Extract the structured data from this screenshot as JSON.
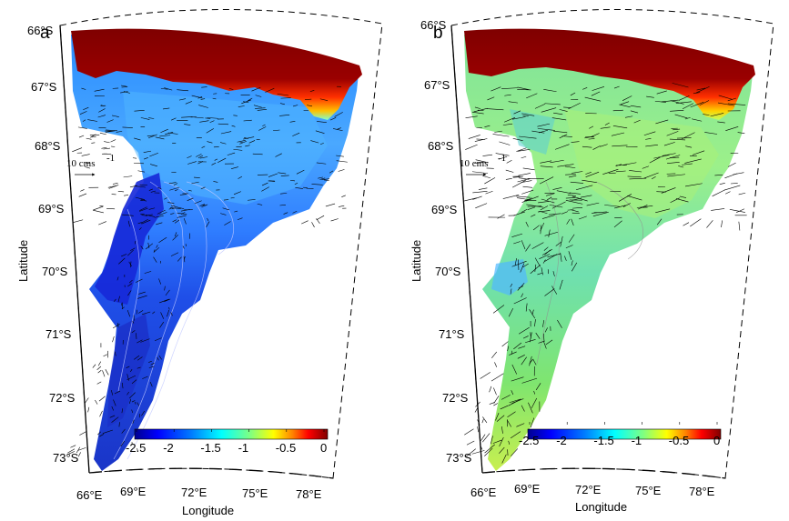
{
  "figure": {
    "x_axis_title": "Longitude",
    "y_axis_title": "Latitude",
    "colorbar_ticks": [
      "-2.5",
      "-2",
      "-1.5",
      "-1",
      "-0.5",
      "0"
    ],
    "lat_ticks": [
      "66°S",
      "67°S",
      "68°S",
      "69°S",
      "70°S",
      "71°S",
      "72°S",
      "73°S"
    ],
    "lon_ticks": [
      "66°E",
      "69°E",
      "72°E",
      "75°E",
      "78°E"
    ],
    "vector_scale_label": "10 cms",
    "vector_scale_exponent": "-1",
    "colormap": [
      "#00008f",
      "#0000ff",
      "#0080ff",
      "#00ffff",
      "#80ff80",
      "#ffff00",
      "#ff8000",
      "#ff0000",
      "#800000"
    ],
    "land_color": "#7f0000"
  },
  "panels": [
    {
      "letter": "a",
      "field_tone": "blue"
    },
    {
      "letter": "b",
      "field_tone": "green"
    }
  ]
}
